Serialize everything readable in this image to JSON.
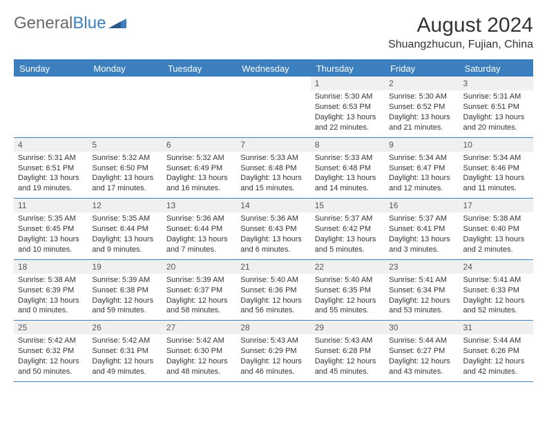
{
  "logo": {
    "text1": "General",
    "text2": "Blue"
  },
  "title": "August 2024",
  "location": "Shuangzhucun, Fujian, China",
  "colors": {
    "accent": "#3b7fbf",
    "header_text": "#ffffff",
    "day_num_bg": "#f0f0f0",
    "text": "#333333"
  },
  "day_labels": [
    "Sunday",
    "Monday",
    "Tuesday",
    "Wednesday",
    "Thursday",
    "Friday",
    "Saturday"
  ],
  "weeks": [
    [
      {
        "num": "",
        "l1": "",
        "l2": "",
        "l3": "",
        "l4": ""
      },
      {
        "num": "",
        "l1": "",
        "l2": "",
        "l3": "",
        "l4": ""
      },
      {
        "num": "",
        "l1": "",
        "l2": "",
        "l3": "",
        "l4": ""
      },
      {
        "num": "",
        "l1": "",
        "l2": "",
        "l3": "",
        "l4": ""
      },
      {
        "num": "1",
        "l1": "Sunrise: 5:30 AM",
        "l2": "Sunset: 6:53 PM",
        "l3": "Daylight: 13 hours",
        "l4": "and 22 minutes."
      },
      {
        "num": "2",
        "l1": "Sunrise: 5:30 AM",
        "l2": "Sunset: 6:52 PM",
        "l3": "Daylight: 13 hours",
        "l4": "and 21 minutes."
      },
      {
        "num": "3",
        "l1": "Sunrise: 5:31 AM",
        "l2": "Sunset: 6:51 PM",
        "l3": "Daylight: 13 hours",
        "l4": "and 20 minutes."
      }
    ],
    [
      {
        "num": "4",
        "l1": "Sunrise: 5:31 AM",
        "l2": "Sunset: 6:51 PM",
        "l3": "Daylight: 13 hours",
        "l4": "and 19 minutes."
      },
      {
        "num": "5",
        "l1": "Sunrise: 5:32 AM",
        "l2": "Sunset: 6:50 PM",
        "l3": "Daylight: 13 hours",
        "l4": "and 17 minutes."
      },
      {
        "num": "6",
        "l1": "Sunrise: 5:32 AM",
        "l2": "Sunset: 6:49 PM",
        "l3": "Daylight: 13 hours",
        "l4": "and 16 minutes."
      },
      {
        "num": "7",
        "l1": "Sunrise: 5:33 AM",
        "l2": "Sunset: 6:48 PM",
        "l3": "Daylight: 13 hours",
        "l4": "and 15 minutes."
      },
      {
        "num": "8",
        "l1": "Sunrise: 5:33 AM",
        "l2": "Sunset: 6:48 PM",
        "l3": "Daylight: 13 hours",
        "l4": "and 14 minutes."
      },
      {
        "num": "9",
        "l1": "Sunrise: 5:34 AM",
        "l2": "Sunset: 6:47 PM",
        "l3": "Daylight: 13 hours",
        "l4": "and 12 minutes."
      },
      {
        "num": "10",
        "l1": "Sunrise: 5:34 AM",
        "l2": "Sunset: 6:46 PM",
        "l3": "Daylight: 13 hours",
        "l4": "and 11 minutes."
      }
    ],
    [
      {
        "num": "11",
        "l1": "Sunrise: 5:35 AM",
        "l2": "Sunset: 6:45 PM",
        "l3": "Daylight: 13 hours",
        "l4": "and 10 minutes."
      },
      {
        "num": "12",
        "l1": "Sunrise: 5:35 AM",
        "l2": "Sunset: 6:44 PM",
        "l3": "Daylight: 13 hours",
        "l4": "and 9 minutes."
      },
      {
        "num": "13",
        "l1": "Sunrise: 5:36 AM",
        "l2": "Sunset: 6:44 PM",
        "l3": "Daylight: 13 hours",
        "l4": "and 7 minutes."
      },
      {
        "num": "14",
        "l1": "Sunrise: 5:36 AM",
        "l2": "Sunset: 6:43 PM",
        "l3": "Daylight: 13 hours",
        "l4": "and 6 minutes."
      },
      {
        "num": "15",
        "l1": "Sunrise: 5:37 AM",
        "l2": "Sunset: 6:42 PM",
        "l3": "Daylight: 13 hours",
        "l4": "and 5 minutes."
      },
      {
        "num": "16",
        "l1": "Sunrise: 5:37 AM",
        "l2": "Sunset: 6:41 PM",
        "l3": "Daylight: 13 hours",
        "l4": "and 3 minutes."
      },
      {
        "num": "17",
        "l1": "Sunrise: 5:38 AM",
        "l2": "Sunset: 6:40 PM",
        "l3": "Daylight: 13 hours",
        "l4": "and 2 minutes."
      }
    ],
    [
      {
        "num": "18",
        "l1": "Sunrise: 5:38 AM",
        "l2": "Sunset: 6:39 PM",
        "l3": "Daylight: 13 hours",
        "l4": "and 0 minutes."
      },
      {
        "num": "19",
        "l1": "Sunrise: 5:39 AM",
        "l2": "Sunset: 6:38 PM",
        "l3": "Daylight: 12 hours",
        "l4": "and 59 minutes."
      },
      {
        "num": "20",
        "l1": "Sunrise: 5:39 AM",
        "l2": "Sunset: 6:37 PM",
        "l3": "Daylight: 12 hours",
        "l4": "and 58 minutes."
      },
      {
        "num": "21",
        "l1": "Sunrise: 5:40 AM",
        "l2": "Sunset: 6:36 PM",
        "l3": "Daylight: 12 hours",
        "l4": "and 56 minutes."
      },
      {
        "num": "22",
        "l1": "Sunrise: 5:40 AM",
        "l2": "Sunset: 6:35 PM",
        "l3": "Daylight: 12 hours",
        "l4": "and 55 minutes."
      },
      {
        "num": "23",
        "l1": "Sunrise: 5:41 AM",
        "l2": "Sunset: 6:34 PM",
        "l3": "Daylight: 12 hours",
        "l4": "and 53 minutes."
      },
      {
        "num": "24",
        "l1": "Sunrise: 5:41 AM",
        "l2": "Sunset: 6:33 PM",
        "l3": "Daylight: 12 hours",
        "l4": "and 52 minutes."
      }
    ],
    [
      {
        "num": "25",
        "l1": "Sunrise: 5:42 AM",
        "l2": "Sunset: 6:32 PM",
        "l3": "Daylight: 12 hours",
        "l4": "and 50 minutes."
      },
      {
        "num": "26",
        "l1": "Sunrise: 5:42 AM",
        "l2": "Sunset: 6:31 PM",
        "l3": "Daylight: 12 hours",
        "l4": "and 49 minutes."
      },
      {
        "num": "27",
        "l1": "Sunrise: 5:42 AM",
        "l2": "Sunset: 6:30 PM",
        "l3": "Daylight: 12 hours",
        "l4": "and 48 minutes."
      },
      {
        "num": "28",
        "l1": "Sunrise: 5:43 AM",
        "l2": "Sunset: 6:29 PM",
        "l3": "Daylight: 12 hours",
        "l4": "and 46 minutes."
      },
      {
        "num": "29",
        "l1": "Sunrise: 5:43 AM",
        "l2": "Sunset: 6:28 PM",
        "l3": "Daylight: 12 hours",
        "l4": "and 45 minutes."
      },
      {
        "num": "30",
        "l1": "Sunrise: 5:44 AM",
        "l2": "Sunset: 6:27 PM",
        "l3": "Daylight: 12 hours",
        "l4": "and 43 minutes."
      },
      {
        "num": "31",
        "l1": "Sunrise: 5:44 AM",
        "l2": "Sunset: 6:26 PM",
        "l3": "Daylight: 12 hours",
        "l4": "and 42 minutes."
      }
    ]
  ]
}
